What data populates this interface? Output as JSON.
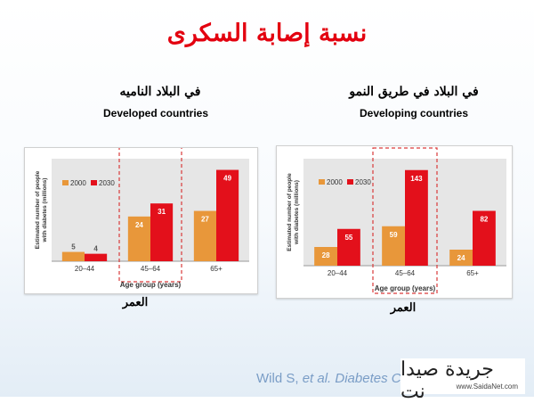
{
  "slide": {
    "title": "نسبة إصابة السكرى",
    "citation_author": "Wild S, ",
    "citation_etal": "et al. Diabetes C",
    "watermark_text": "جريدة صيدا نت",
    "watermark_url": "www.SaidaNet.com"
  },
  "left_panel": {
    "heading_ar": "في البلاد الناميه",
    "heading_en": "Developed countries",
    "axis_ar": "العمر"
  },
  "right_panel": {
    "heading_ar": "في البلاد في طريق النمو",
    "heading_en": "Developing countries",
    "axis_ar": "العمر"
  },
  "colors": {
    "series_2000": "#e8973a",
    "series_2030": "#e3101b",
    "plot_bg": "#e6e6e6",
    "highlight": "#d93a3a"
  },
  "chart_data": [
    {
      "type": "bar",
      "categories": [
        "20–44",
        "45–64",
        "65+"
      ],
      "series": [
        {
          "name": "2000",
          "values": [
            5,
            24,
            27
          ]
        },
        {
          "name": "2030",
          "values": [
            4,
            31,
            49
          ]
        }
      ],
      "title": "",
      "xlabel": "Age group (years)",
      "ylabel": "Estimated number of people with diabetes (millions)",
      "ylim": [
        0,
        55
      ],
      "legend": "top-left",
      "highlight_category": "45–64",
      "grid": false
    },
    {
      "type": "bar",
      "categories": [
        "20–44",
        "45–64",
        "65+"
      ],
      "series": [
        {
          "name": "2000",
          "values": [
            28,
            59,
            24
          ]
        },
        {
          "name": "2030",
          "values": [
            55,
            143,
            82
          ]
        }
      ],
      "title": "",
      "xlabel": "Age group (years)",
      "ylabel": "Estimated number of people with diabetes (millions)",
      "ylim": [
        0,
        160
      ],
      "legend": "top-left",
      "highlight_category": "45–64",
      "grid": false
    }
  ]
}
